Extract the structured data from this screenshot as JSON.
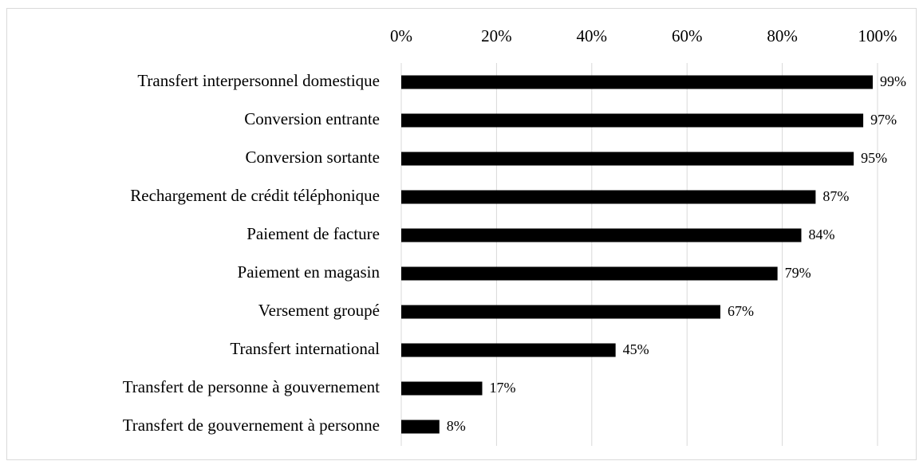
{
  "chart_data": {
    "type": "barh",
    "categories": [
      "Transfert interpersonnel domestique",
      "Conversion entrante",
      "Conversion sortante",
      "Rechargement de crédit téléphonique",
      "Paiement de facture",
      "Paiement en magasin",
      "Versement groupé",
      "Transfert international",
      "Transfert de personne à gouvernement",
      "Transfert de gouvernement à personne"
    ],
    "values": [
      99,
      97,
      95,
      87,
      84,
      79,
      67,
      45,
      17,
      8
    ],
    "value_labels": [
      "99%",
      "97%",
      "95%",
      "87%",
      "84%",
      "79%",
      "67%",
      "45%",
      "17%",
      "8%"
    ],
    "color": "#000000",
    "xlim": [
      0,
      100
    ],
    "xticks": [
      {
        "value": 0,
        "label": "0%"
      },
      {
        "value": 20,
        "label": "20%"
      },
      {
        "value": 40,
        "label": "40%"
      },
      {
        "value": 60,
        "label": "60%"
      },
      {
        "value": 80,
        "label": "80%"
      },
      {
        "value": 100,
        "label": "100%"
      }
    ],
    "grid": true
  }
}
